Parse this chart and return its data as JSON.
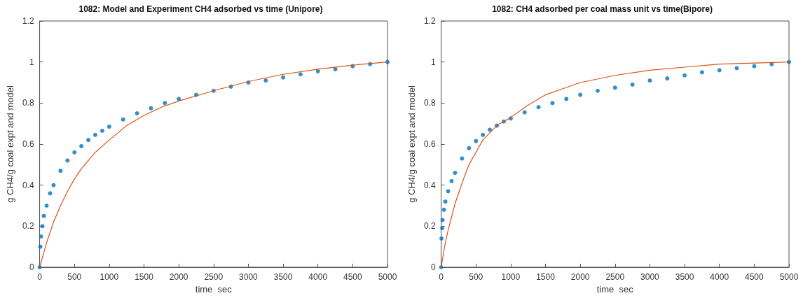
{
  "chart_data": [
    {
      "type": "scatter",
      "title": "1082: Model and Experiment CH4 adsorbed vs time (Unipore)",
      "xlabel": "time  sec",
      "ylabel": "g CH4/g coal expt and model",
      "xlim": [
        0,
        5000
      ],
      "xticks": [
        0,
        500,
        1000,
        1500,
        2000,
        2500,
        3000,
        3500,
        4000,
        4500,
        5000
      ],
      "ylim": [
        0,
        1.2
      ],
      "yticks": [
        0,
        0.2,
        0.4,
        0.6,
        0.8,
        1,
        1.2
      ],
      "grid": false,
      "series": [
        {
          "marker": "circle",
          "color": "#0072bd",
          "x": [
            0,
            10,
            20,
            40,
            60,
            100,
            150,
            200,
            300,
            400,
            500,
            600,
            700,
            800,
            900,
            1000,
            1200,
            1400,
            1600,
            1800,
            2000,
            2250,
            2500,
            2750,
            3000,
            3250,
            3500,
            3750,
            4000,
            4250,
            4500,
            4750,
            5000
          ],
          "values": [
            0,
            0.1,
            0.15,
            0.2,
            0.25,
            0.3,
            0.36,
            0.4,
            0.47,
            0.52,
            0.56,
            0.59,
            0.62,
            0.645,
            0.665,
            0.685,
            0.72,
            0.75,
            0.775,
            0.8,
            0.82,
            0.84,
            0.86,
            0.88,
            0.9,
            0.91,
            0.925,
            0.94,
            0.955,
            0.965,
            0.98,
            0.99,
            1.0
          ]
        },
        {
          "type": "line",
          "color": "#d95319",
          "x": [
            0,
            100,
            200,
            300,
            400,
            500,
            600,
            800,
            1000,
            1250,
            1500,
            1750,
            2000,
            2500,
            3000,
            3500,
            4000,
            4500,
            5000
          ],
          "values": [
            0,
            0.12,
            0.22,
            0.3,
            0.37,
            0.43,
            0.48,
            0.56,
            0.62,
            0.69,
            0.74,
            0.78,
            0.81,
            0.86,
            0.905,
            0.94,
            0.965,
            0.985,
            1.0
          ]
        }
      ]
    },
    {
      "type": "scatter",
      "title": "1082: CH4 adsorbed per coal mass unit vs time(Bipore)",
      "xlabel": "time  sec",
      "ylabel": "g CH4/g coal expt and model",
      "xlim": [
        0,
        5000
      ],
      "xticks": [
        0,
        500,
        1000,
        1500,
        2000,
        2500,
        3000,
        3500,
        4000,
        4500,
        5000
      ],
      "ylim": [
        0,
        1.2
      ],
      "yticks": [
        0,
        0.2,
        0.4,
        0.6,
        0.8,
        1,
        1.2
      ],
      "grid": false,
      "series": [
        {
          "marker": "circle",
          "color": "#0072bd",
          "x": [
            0,
            5,
            15,
            20,
            40,
            60,
            100,
            150,
            200,
            300,
            400,
            500,
            600,
            700,
            800,
            900,
            1000,
            1200,
            1400,
            1600,
            1800,
            2000,
            2250,
            2500,
            2750,
            3000,
            3250,
            3500,
            3750,
            4000,
            4250,
            4500,
            4750,
            5000
          ],
          "values": [
            0,
            0.14,
            0.19,
            0.23,
            0.28,
            0.32,
            0.37,
            0.42,
            0.46,
            0.53,
            0.58,
            0.615,
            0.645,
            0.67,
            0.69,
            0.71,
            0.725,
            0.755,
            0.78,
            0.8,
            0.82,
            0.84,
            0.86,
            0.875,
            0.89,
            0.91,
            0.92,
            0.935,
            0.95,
            0.96,
            0.97,
            0.98,
            0.99,
            1.0
          ]
        },
        {
          "type": "line",
          "color": "#d95319",
          "x": [
            0,
            50,
            100,
            200,
            300,
            400,
            500,
            600,
            800,
            1000,
            1250,
            1500,
            1750,
            2000,
            2500,
            3000,
            3500,
            4000,
            4500,
            5000
          ],
          "values": [
            0,
            0.1,
            0.18,
            0.31,
            0.41,
            0.5,
            0.56,
            0.62,
            0.69,
            0.73,
            0.79,
            0.84,
            0.87,
            0.9,
            0.935,
            0.96,
            0.975,
            0.99,
            0.995,
            1.0
          ]
        }
      ]
    }
  ]
}
